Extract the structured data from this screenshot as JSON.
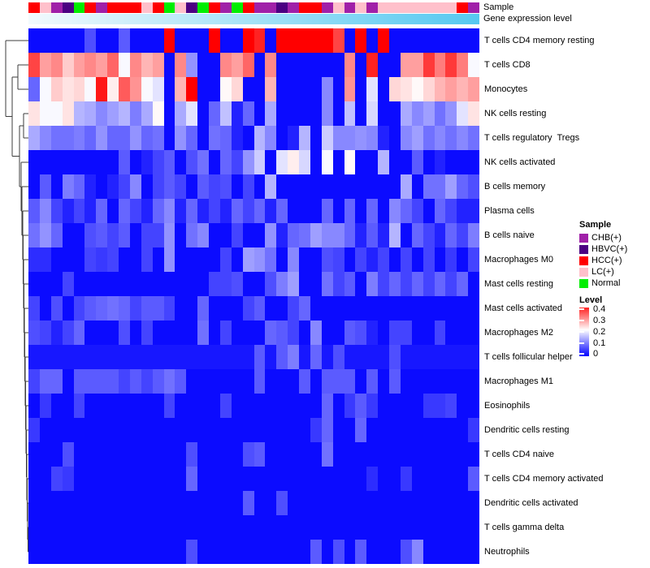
{
  "chart_data": {
    "type": "heatmap",
    "title": "",
    "rows": [
      "T cells CD4 memory resting",
      "T cells CD8",
      "Monocytes",
      "NK cells resting",
      "T cells regulatory  Tregs",
      "NK cells activated",
      "B cells memory",
      "Plasma cells",
      "B cells naive",
      "Macrophages M0",
      "Mast cells resting",
      "Mast cells activated",
      "Macrophages M2",
      "T cells follicular helper",
      "Macrophages M1",
      "Eosinophils",
      "Dendritic cells resting",
      "T cells CD4 naive",
      "T cells CD4 memory activated",
      "Dendritic cells activated",
      "T cells gamma delta",
      "Neutrophils"
    ],
    "n_columns": 40,
    "column_annotations": {
      "sample": {
        "label": "Sample",
        "groups_by_column": [
          "HCC(+)",
          "LC(+)",
          "CHB(+)",
          "HBVC(+)",
          "Normal",
          "HCC(+)",
          "CHB(+)",
          "HCC(+)",
          "HCC(+)",
          "HCC(+)",
          "LC(+)",
          "HCC(+)",
          "Normal",
          "LC(+)",
          "HBVC(+)",
          "Normal",
          "HCC(+)",
          "CHB(+)",
          "Normal",
          "HCC(+)",
          "CHB(+)",
          "CHB(+)",
          "HBVC(+)",
          "CHB(+)",
          "HCC(+)",
          "HCC(+)",
          "CHB(+)",
          "LC(+)",
          "CHB(+)",
          "LC(+)",
          "CHB(+)",
          "LC(+)",
          "LC(+)",
          "LC(+)",
          "LC(+)",
          "LC(+)",
          "LC(+)",
          "LC(+)",
          "HCC(+)",
          "CHB(+)"
        ]
      },
      "gene_expression": {
        "label": "Gene expression level",
        "gradient_left_color": "#F2FAFD",
        "gradient_right_color": "#55C8F0"
      }
    },
    "colormap": {
      "min": 0,
      "mid": 0.225,
      "max": 0.45,
      "min_color": "#0000FF",
      "mid_color": "#FFFFFF",
      "max_color": "#FF0000"
    },
    "values": [
      [
        0.01,
        0.01,
        0.01,
        0.01,
        0.01,
        0.07,
        0.01,
        0.01,
        0.08,
        0.01,
        0.01,
        0.01,
        0.45,
        0.01,
        0.01,
        0.01,
        0.45,
        0.01,
        0.01,
        0.45,
        0.42,
        0.01,
        0.45,
        0.45,
        0.45,
        0.45,
        0.45,
        0.39,
        0.01,
        0.45,
        0.01,
        0.45,
        0.01,
        0.01,
        0.01,
        0.01,
        0.01,
        0.01,
        0.01,
        0.01
      ],
      [
        0.39,
        0.31,
        0.33,
        0.27,
        0.31,
        0.33,
        0.31,
        0.36,
        0.22,
        0.33,
        0.29,
        0.31,
        0.01,
        0.33,
        0.13,
        0.01,
        0.01,
        0.33,
        0.31,
        0.36,
        0.01,
        0.33,
        0.01,
        0.01,
        0.01,
        0.01,
        0.01,
        0.01,
        0.33,
        0.01,
        0.42,
        0.01,
        0.01,
        0.31,
        0.31,
        0.4,
        0.34,
        0.4,
        0.34,
        0.22
      ],
      [
        0.09,
        0.22,
        0.27,
        0.25,
        0.26,
        0.22,
        0.43,
        0.24,
        0.37,
        0.32,
        0.22,
        0.2,
        0.01,
        0.29,
        0.45,
        0.01,
        0.01,
        0.23,
        0.26,
        0.01,
        0.01,
        0.29,
        0.01,
        0.01,
        0.01,
        0.01,
        0.12,
        0.01,
        0.32,
        0.01,
        0.2,
        0.01,
        0.26,
        0.25,
        0.23,
        0.26,
        0.29,
        0.31,
        0.29,
        0.31
      ],
      [
        0.25,
        0.22,
        0.22,
        0.25,
        0.16,
        0.15,
        0.12,
        0.14,
        0.16,
        0.11,
        0.15,
        0.23,
        0.01,
        0.15,
        0.2,
        0.01,
        0.09,
        0.17,
        0.03,
        0.09,
        0.01,
        0.15,
        0.01,
        0.01,
        0.01,
        0.01,
        0.12,
        0.01,
        0.17,
        0.01,
        0.19,
        0.01,
        0.01,
        0.15,
        0.12,
        0.14,
        0.1,
        0.13,
        0.2,
        0.25
      ],
      [
        0.15,
        0.12,
        0.1,
        0.1,
        0.11,
        0.09,
        0.13,
        0.09,
        0.09,
        0.13,
        0.09,
        0.1,
        0.01,
        0.13,
        0.09,
        0.01,
        0.1,
        0.09,
        0.03,
        0.01,
        0.16,
        0.12,
        0.01,
        0.03,
        0.16,
        0.01,
        0.18,
        0.12,
        0.12,
        0.13,
        0.12,
        0.03,
        0.01,
        0.12,
        0.14,
        0.1,
        0.12,
        0.1,
        0.12,
        0.1
      ],
      [
        0.01,
        0.01,
        0.01,
        0.01,
        0.01,
        0.01,
        0.01,
        0.01,
        0.08,
        0.01,
        0.03,
        0.06,
        0.08,
        0.01,
        0.07,
        0.1,
        0.01,
        0.09,
        0.06,
        0.13,
        0.18,
        0.01,
        0.2,
        0.24,
        0.19,
        0.01,
        0.22,
        0.01,
        0.23,
        0.01,
        0.01,
        0.16,
        0.01,
        0.01,
        0.08,
        0.01,
        0.03,
        0.01,
        0.01,
        0.01
      ],
      [
        0.01,
        0.08,
        0.01,
        0.11,
        0.09,
        0.03,
        0.01,
        0.03,
        0.06,
        0.12,
        0.01,
        0.06,
        0.08,
        0.06,
        0.01,
        0.08,
        0.06,
        0.07,
        0.01,
        0.06,
        0.01,
        0.16,
        0.01,
        0.01,
        0.01,
        0.01,
        0.01,
        0.01,
        0.01,
        0.01,
        0.01,
        0.01,
        0.01,
        0.15,
        0.01,
        0.1,
        0.1,
        0.14,
        0.09,
        0.07
      ],
      [
        0.08,
        0.12,
        0.06,
        0.03,
        0.06,
        0.03,
        0.09,
        0.01,
        0.09,
        0.06,
        0.03,
        0.09,
        0.12,
        0.03,
        0.09,
        0.03,
        0.06,
        0.03,
        0.09,
        0.06,
        0.09,
        0.03,
        0.09,
        0.01,
        0.01,
        0.01,
        0.09,
        0.01,
        0.09,
        0.01,
        0.09,
        0.01,
        0.12,
        0.09,
        0.06,
        0.01,
        0.09,
        0.06,
        0.03,
        0.03
      ],
      [
        0.1,
        0.13,
        0.09,
        0.01,
        0.01,
        0.07,
        0.08,
        0.06,
        0.08,
        0.01,
        0.06,
        0.06,
        0.13,
        0.01,
        0.1,
        0.12,
        0.01,
        0.01,
        0.06,
        0.01,
        0.01,
        0.13,
        0.03,
        0.09,
        0.1,
        0.14,
        0.12,
        0.12,
        0.09,
        0.03,
        0.08,
        0.03,
        0.16,
        0.01,
        0.09,
        0.06,
        0.03,
        0.09,
        0.06,
        0.11
      ],
      [
        0.04,
        0.04,
        0.01,
        0.01,
        0.01,
        0.06,
        0.05,
        0.06,
        0.01,
        0.01,
        0.06,
        0.01,
        0.13,
        0.01,
        0.01,
        0.01,
        0.01,
        0.06,
        0.01,
        0.14,
        0.13,
        0.1,
        0.01,
        0.12,
        0.01,
        0.01,
        0.07,
        0.06,
        0.01,
        0.06,
        0.03,
        0.06,
        0.01,
        0.06,
        0.01,
        0.06,
        0.01,
        0.05,
        0.01,
        0.06
      ],
      [
        0.01,
        0.01,
        0.01,
        0.06,
        0.01,
        0.01,
        0.01,
        0.01,
        0.01,
        0.01,
        0.01,
        0.01,
        0.01,
        0.01,
        0.01,
        0.01,
        0.06,
        0.06,
        0.07,
        0.01,
        0.01,
        0.07,
        0.11,
        0.14,
        0.01,
        0.01,
        0.1,
        0.06,
        0.08,
        0.01,
        0.11,
        0.06,
        0.09,
        0.06,
        0.09,
        0.06,
        0.09,
        0.06,
        0.09,
        0.01
      ],
      [
        0.06,
        0.01,
        0.07,
        0.01,
        0.06,
        0.08,
        0.09,
        0.1,
        0.09,
        0.06,
        0.08,
        0.08,
        0.06,
        0.01,
        0.01,
        0.09,
        0.01,
        0.01,
        0.01,
        0.06,
        0.08,
        0.01,
        0.01,
        0.06,
        0.09,
        0.01,
        0.01,
        0.01,
        0.01,
        0.01,
        0.01,
        0.01,
        0.01,
        0.01,
        0.01,
        0.01,
        0.01,
        0.01,
        0.01,
        0.01
      ],
      [
        0.07,
        0.06,
        0.03,
        0.06,
        0.09,
        0.01,
        0.01,
        0.01,
        0.07,
        0.01,
        0.06,
        0.01,
        0.01,
        0.01,
        0.01,
        0.1,
        0.01,
        0.06,
        0.01,
        0.01,
        0.01,
        0.09,
        0.08,
        0.06,
        0.01,
        0.12,
        0.01,
        0.01,
        0.08,
        0.07,
        0.03,
        0.01,
        0.06,
        0.06,
        0.01,
        0.01,
        0.06,
        0.01,
        0.01,
        0.01
      ],
      [
        0.02,
        0.02,
        0.02,
        0.02,
        0.02,
        0.02,
        0.02,
        0.02,
        0.02,
        0.02,
        0.02,
        0.02,
        0.02,
        0.02,
        0.02,
        0.02,
        0.02,
        0.02,
        0.02,
        0.02,
        0.08,
        0.02,
        0.08,
        0.11,
        0.02,
        0.09,
        0.02,
        0.07,
        0.02,
        0.02,
        0.02,
        0.02,
        0.07,
        0.02,
        0.02,
        0.02,
        0.02,
        0.02,
        0.02,
        0.02
      ],
      [
        0.06,
        0.09,
        0.09,
        0.01,
        0.08,
        0.08,
        0.08,
        0.08,
        0.06,
        0.08,
        0.06,
        0.08,
        0.1,
        0.08,
        0.01,
        0.01,
        0.01,
        0.01,
        0.01,
        0.01,
        0.08,
        0.01,
        0.01,
        0.01,
        0.08,
        0.01,
        0.08,
        0.08,
        0.08,
        0.01,
        0.08,
        0.01,
        0.08,
        0.01,
        0.01,
        0.01,
        0.01,
        0.01,
        0.01,
        0.01
      ],
      [
        0.01,
        0.05,
        0.01,
        0.01,
        0.06,
        0.01,
        0.01,
        0.01,
        0.01,
        0.01,
        0.01,
        0.01,
        0.06,
        0.01,
        0.01,
        0.01,
        0.01,
        0.06,
        0.01,
        0.01,
        0.01,
        0.01,
        0.01,
        0.01,
        0.01,
        0.01,
        0.09,
        0.01,
        0.05,
        0.08,
        0.05,
        0.01,
        0.01,
        0.01,
        0.01,
        0.05,
        0.05,
        0.06,
        0.01,
        0.01
      ],
      [
        0.05,
        0.01,
        0.01,
        0.01,
        0.01,
        0.01,
        0.01,
        0.01,
        0.01,
        0.01,
        0.01,
        0.01,
        0.01,
        0.01,
        0.01,
        0.01,
        0.01,
        0.01,
        0.01,
        0.01,
        0.01,
        0.01,
        0.01,
        0.01,
        0.01,
        0.05,
        0.09,
        0.01,
        0.01,
        0.09,
        0.01,
        0.01,
        0.01,
        0.01,
        0.01,
        0.01,
        0.01,
        0.01,
        0.01,
        0.05
      ],
      [
        0.01,
        0.01,
        0.01,
        0.07,
        0.01,
        0.01,
        0.01,
        0.01,
        0.01,
        0.01,
        0.01,
        0.01,
        0.01,
        0.01,
        0.07,
        0.01,
        0.01,
        0.01,
        0.01,
        0.07,
        0.08,
        0.01,
        0.01,
        0.01,
        0.01,
        0.01,
        0.1,
        0.01,
        0.01,
        0.01,
        0.01,
        0.01,
        0.01,
        0.01,
        0.01,
        0.01,
        0.01,
        0.01,
        0.01,
        0.01
      ],
      [
        0.01,
        0.01,
        0.06,
        0.05,
        0.01,
        0.01,
        0.01,
        0.01,
        0.01,
        0.01,
        0.01,
        0.01,
        0.01,
        0.01,
        0.09,
        0.01,
        0.01,
        0.01,
        0.01,
        0.01,
        0.01,
        0.01,
        0.01,
        0.01,
        0.01,
        0.01,
        0.01,
        0.01,
        0.01,
        0.01,
        0.04,
        0.01,
        0.01,
        0.05,
        0.01,
        0.01,
        0.01,
        0.01,
        0.01,
        0.08
      ],
      [
        0.01,
        0.01,
        0.01,
        0.01,
        0.01,
        0.01,
        0.01,
        0.01,
        0.01,
        0.01,
        0.01,
        0.01,
        0.01,
        0.01,
        0.01,
        0.01,
        0.01,
        0.01,
        0.01,
        0.08,
        0.01,
        0.01,
        0.07,
        0.01,
        0.01,
        0.01,
        0.01,
        0.01,
        0.01,
        0.01,
        0.01,
        0.01,
        0.01,
        0.01,
        0.01,
        0.01,
        0.01,
        0.01,
        0.01,
        0.01
      ],
      [
        0.01,
        0.01,
        0.01,
        0.01,
        0.01,
        0.01,
        0.01,
        0.01,
        0.01,
        0.01,
        0.01,
        0.01,
        0.01,
        0.01,
        0.01,
        0.01,
        0.01,
        0.01,
        0.01,
        0.01,
        0.01,
        0.01,
        0.01,
        0.01,
        0.01,
        0.01,
        0.01,
        0.01,
        0.01,
        0.01,
        0.01,
        0.01,
        0.01,
        0.01,
        0.01,
        0.01,
        0.01,
        0.01,
        0.01,
        0.01
      ],
      [
        0.01,
        0.01,
        0.01,
        0.01,
        0.01,
        0.01,
        0.01,
        0.01,
        0.01,
        0.01,
        0.01,
        0.01,
        0.01,
        0.01,
        0.07,
        0.01,
        0.01,
        0.01,
        0.01,
        0.01,
        0.01,
        0.01,
        0.01,
        0.01,
        0.01,
        0.08,
        0.01,
        0.07,
        0.01,
        0.08,
        0.01,
        0.01,
        0.01,
        0.07,
        0.12,
        0.01,
        0.01,
        0.01,
        0.01,
        0.01
      ]
    ],
    "legend_sample": {
      "title": "Sample",
      "entries": [
        {
          "label": "CHB(+)",
          "color": "#A020A8"
        },
        {
          "label": "HBVC(+)",
          "color": "#4B0082"
        },
        {
          "label": "HCC(+)",
          "color": "#FF0000"
        },
        {
          "label": "LC(+)",
          "color": "#FFC0CB"
        },
        {
          "label": "Normal",
          "color": "#00EE00"
        }
      ]
    },
    "legend_level": {
      "title": "Level",
      "ticks": [
        "0.4",
        "0.3",
        "0.2",
        "0.1",
        "0"
      ],
      "bar_top_value": 0.42
    },
    "layout": {
      "grid": false,
      "legend_position": "right",
      "dendrogram": "left-rows"
    }
  }
}
